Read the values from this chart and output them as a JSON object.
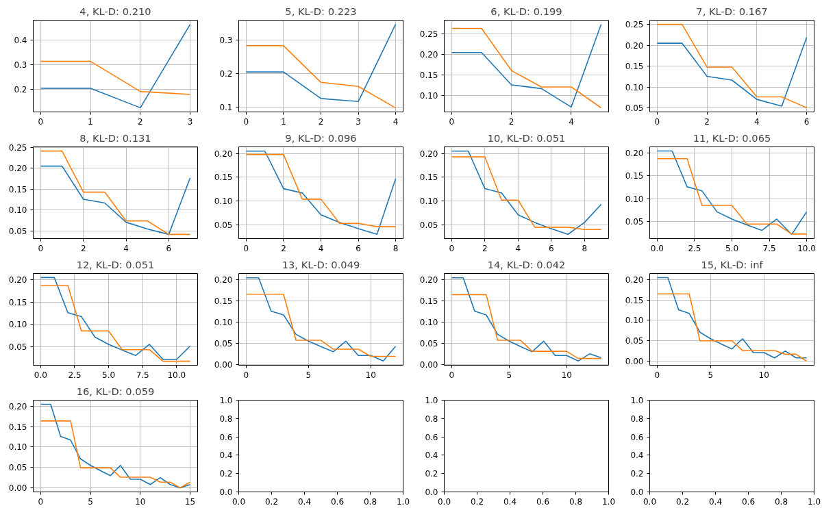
{
  "chart_data": [
    {
      "type": "line",
      "title": "4, KL-D: 0.210",
      "x": [
        0,
        1,
        2,
        3
      ],
      "series": [
        {
          "color": "#1f77b4",
          "values": [
            0.205,
            0.205,
            0.126,
            0.464
          ]
        },
        {
          "color": "#ff7f0e",
          "values": [
            0.314,
            0.314,
            0.192,
            0.18
          ]
        }
      ],
      "xlim": [
        -0.15,
        3.15
      ],
      "ylim": [
        0.109,
        0.481
      ],
      "xticks": [
        0,
        1,
        2,
        3
      ],
      "yticks": [
        0.2,
        0.3,
        0.4
      ],
      "grid": true
    },
    {
      "type": "line",
      "title": "5, KL-D: 0.223",
      "x": [
        0,
        1,
        2,
        3,
        4
      ],
      "series": [
        {
          "color": "#1f77b4",
          "values": [
            0.205,
            0.205,
            0.126,
            0.117,
            0.347
          ]
        },
        {
          "color": "#ff7f0e",
          "values": [
            0.283,
            0.283,
            0.174,
            0.162,
            0.098
          ]
        }
      ],
      "xlim": [
        -0.2,
        4.2
      ],
      "ylim": [
        0.086,
        0.359
      ],
      "xticks": [
        0,
        1,
        2,
        3,
        4
      ],
      "yticks": [
        0.1,
        0.2,
        0.3
      ],
      "grid": true
    },
    {
      "type": "line",
      "title": "6, KL-D: 0.199",
      "x": [
        0,
        1,
        2,
        3,
        4,
        5
      ],
      "series": [
        {
          "color": "#1f77b4",
          "values": [
            0.205,
            0.205,
            0.126,
            0.117,
            0.072,
            0.274
          ]
        },
        {
          "color": "#ff7f0e",
          "values": [
            0.264,
            0.264,
            0.161,
            0.121,
            0.121,
            0.07
          ]
        }
      ],
      "xlim": [
        -0.25,
        5.25
      ],
      "ylim": [
        0.06,
        0.284
      ],
      "xticks": [
        0,
        2,
        4
      ],
      "yticks": [
        {
          "value": 0.1,
          "label": "0.10"
        },
        0.15,
        {
          "value": 0.2,
          "label": "0.20"
        },
        0.25
      ],
      "grid": true
    },
    {
      "type": "line",
      "title": "7, KL-D: 0.167",
      "x": [
        0,
        1,
        2,
        3,
        4,
        5,
        6
      ],
      "series": [
        {
          "color": "#1f77b4",
          "values": [
            0.205,
            0.205,
            0.126,
            0.117,
            0.071,
            0.055,
            0.219
          ]
        },
        {
          "color": "#ff7f0e",
          "values": [
            0.25,
            0.25,
            0.148,
            0.148,
            0.077,
            0.077,
            0.051
          ]
        }
      ],
      "xlim": [
        -0.3,
        6.3
      ],
      "ylim": [
        0.041,
        0.26
      ],
      "xticks": [
        0,
        2,
        4,
        6
      ],
      "yticks": [
        0.05,
        {
          "value": 0.1,
          "label": "0.10"
        },
        0.15,
        {
          "value": 0.2,
          "label": "0.20"
        },
        0.25
      ],
      "grid": true
    },
    {
      "type": "line",
      "title": "8, KL-D: 0.131",
      "x": [
        0,
        1,
        2,
        3,
        4,
        5,
        6,
        7
      ],
      "series": [
        {
          "color": "#1f77b4",
          "values": [
            0.205,
            0.205,
            0.126,
            0.117,
            0.071,
            0.055,
            0.042,
            0.177
          ]
        },
        {
          "color": "#ff7f0e",
          "values": [
            0.241,
            0.241,
            0.143,
            0.143,
            0.074,
            0.074,
            0.042,
            0.042
          ]
        }
      ],
      "xlim": [
        -0.35,
        7.35
      ],
      "ylim": [
        0.032,
        0.251
      ],
      "xticks": [
        0,
        2,
        4,
        6
      ],
      "yticks": [
        0.05,
        {
          "value": 0.1,
          "label": "0.10"
        },
        0.15,
        {
          "value": 0.2,
          "label": "0.20"
        },
        0.25
      ],
      "grid": true
    },
    {
      "type": "line",
      "title": "9, KL-D: 0.096",
      "x": [
        0,
        1,
        2,
        3,
        4,
        5,
        6,
        7,
        8
      ],
      "series": [
        {
          "color": "#1f77b4",
          "values": [
            0.205,
            0.205,
            0.126,
            0.117,
            0.071,
            0.055,
            0.042,
            0.03,
            0.147
          ]
        },
        {
          "color": "#ff7f0e",
          "values": [
            0.198,
            0.198,
            0.198,
            0.104,
            0.104,
            0.053,
            0.053,
            0.046,
            0.046
          ]
        }
      ],
      "xlim": [
        -0.4,
        8.4
      ],
      "ylim": [
        0.021,
        0.214
      ],
      "xticks": [
        0,
        2,
        4,
        6,
        8
      ],
      "yticks": [
        0.05,
        {
          "value": 0.1,
          "label": "0.10"
        },
        0.15,
        {
          "value": 0.2,
          "label": "0.20"
        }
      ],
      "grid": true
    },
    {
      "type": "line",
      "title": "10, KL-D: 0.051",
      "x": [
        0,
        1,
        2,
        3,
        4,
        5,
        6,
        7,
        8,
        9
      ],
      "series": [
        {
          "color": "#1f77b4",
          "values": [
            0.205,
            0.205,
            0.126,
            0.117,
            0.071,
            0.055,
            0.042,
            0.03,
            0.055,
            0.093
          ]
        },
        {
          "color": "#ff7f0e",
          "values": [
            0.193,
            0.193,
            0.193,
            0.102,
            0.102,
            0.045,
            0.045,
            0.045,
            0.04,
            0.04
          ]
        }
      ],
      "xlim": [
        -0.45,
        9.45
      ],
      "ylim": [
        0.021,
        0.214
      ],
      "xticks": [
        0,
        2,
        4,
        6,
        8
      ],
      "yticks": [
        0.05,
        {
          "value": 0.1,
          "label": "0.10"
        },
        0.15,
        {
          "value": 0.2,
          "label": "0.20"
        }
      ],
      "grid": true
    },
    {
      "type": "line",
      "title": "11, KL-D: 0.065",
      "x": [
        0,
        1,
        2,
        3,
        4,
        5,
        6,
        7,
        8,
        9,
        10
      ],
      "series": [
        {
          "color": "#1f77b4",
          "values": [
            0.205,
            0.205,
            0.126,
            0.117,
            0.071,
            0.055,
            0.042,
            0.03,
            0.055,
            0.021,
            0.071
          ]
        },
        {
          "color": "#ff7f0e",
          "values": [
            0.188,
            0.188,
            0.188,
            0.085,
            0.085,
            0.085,
            0.044,
            0.044,
            0.044,
            0.022,
            0.022
          ]
        }
      ],
      "xlim": [
        -0.5,
        10.5
      ],
      "ylim": [
        0.012,
        0.214
      ],
      "xticks": [
        {
          "value": 0,
          "label": "0.0"
        },
        2.5,
        {
          "value": 5,
          "label": "5.0"
        },
        7.5,
        {
          "value": 10,
          "label": "10.0"
        }
      ],
      "yticks": [
        0.05,
        {
          "value": 0.1,
          "label": "0.10"
        },
        0.15,
        {
          "value": 0.2,
          "label": "0.20"
        }
      ],
      "grid": true
    },
    {
      "type": "line",
      "title": "12, KL-D: 0.051",
      "x": [
        0,
        1,
        2,
        3,
        4,
        5,
        6,
        7,
        8,
        9,
        10,
        11
      ],
      "series": [
        {
          "color": "#1f77b4",
          "values": [
            0.205,
            0.205,
            0.126,
            0.117,
            0.071,
            0.055,
            0.042,
            0.03,
            0.055,
            0.021,
            0.021,
            0.051
          ]
        },
        {
          "color": "#ff7f0e",
          "values": [
            0.187,
            0.187,
            0.187,
            0.085,
            0.085,
            0.085,
            0.043,
            0.043,
            0.043,
            0.017,
            0.017,
            0.017
          ]
        }
      ],
      "xlim": [
        -0.55,
        11.55
      ],
      "ylim": [
        0.008,
        0.214
      ],
      "xticks": [
        {
          "value": 0,
          "label": "0.0"
        },
        2.5,
        {
          "value": 5,
          "label": "5.0"
        },
        7.5,
        {
          "value": 10,
          "label": "10.0"
        }
      ],
      "yticks": [
        0.05,
        {
          "value": 0.1,
          "label": "0.10"
        },
        0.15,
        {
          "value": 0.2,
          "label": "0.20"
        }
      ],
      "grid": true
    },
    {
      "type": "line",
      "title": "13, KL-D: 0.049",
      "x": [
        0,
        1,
        2,
        3,
        4,
        5,
        6,
        7,
        8,
        9,
        10,
        11,
        12
      ],
      "series": [
        {
          "color": "#1f77b4",
          "values": [
            0.205,
            0.205,
            0.126,
            0.117,
            0.071,
            0.055,
            0.042,
            0.03,
            0.055,
            0.021,
            0.021,
            0.008,
            0.043
          ]
        },
        {
          "color": "#ff7f0e",
          "values": [
            0.166,
            0.166,
            0.166,
            0.166,
            0.057,
            0.057,
            0.057,
            0.036,
            0.036,
            0.036,
            0.019,
            0.019,
            0.019
          ]
        }
      ],
      "xlim": [
        -0.6,
        12.6
      ],
      "ylim": [
        -0.002,
        0.215
      ],
      "xticks": [
        0,
        5,
        10
      ],
      "yticks": [
        {
          "value": 0,
          "label": "0.00"
        },
        0.05,
        {
          "value": 0.1,
          "label": "0.10"
        },
        0.15,
        {
          "value": 0.2,
          "label": "0.20"
        }
      ],
      "grid": true
    },
    {
      "type": "line",
      "title": "14, KL-D: 0.042",
      "x": [
        0,
        1,
        2,
        3,
        4,
        5,
        6,
        7,
        8,
        9,
        10,
        11,
        12,
        13
      ],
      "series": [
        {
          "color": "#1f77b4",
          "values": [
            0.205,
            0.205,
            0.126,
            0.117,
            0.071,
            0.055,
            0.042,
            0.03,
            0.055,
            0.021,
            0.021,
            0.008,
            0.025,
            0.016
          ]
        },
        {
          "color": "#ff7f0e",
          "values": [
            0.165,
            0.165,
            0.165,
            0.165,
            0.057,
            0.057,
            0.057,
            0.031,
            0.031,
            0.031,
            0.031,
            0.014,
            0.014,
            0.014
          ]
        }
      ],
      "xlim": [
        -0.65,
        13.65
      ],
      "ylim": [
        -0.002,
        0.215
      ],
      "xticks": [
        0,
        5,
        10
      ],
      "yticks": [
        {
          "value": 0,
          "label": "0.00"
        },
        0.05,
        {
          "value": 0.1,
          "label": "0.10"
        },
        0.15,
        {
          "value": 0.2,
          "label": "0.20"
        }
      ],
      "grid": true
    },
    {
      "type": "line",
      "title": "15, KL-D: inf",
      "x": [
        0,
        1,
        2,
        3,
        4,
        5,
        6,
        7,
        8,
        9,
        10,
        11,
        12,
        13,
        14
      ],
      "series": [
        {
          "color": "#1f77b4",
          "values": [
            0.205,
            0.205,
            0.126,
            0.117,
            0.071,
            0.055,
            0.042,
            0.03,
            0.055,
            0.021,
            0.021,
            0.008,
            0.025,
            0.008,
            0.008
          ]
        },
        {
          "color": "#ff7f0e",
          "values": [
            0.165,
            0.165,
            0.165,
            0.165,
            0.05,
            0.05,
            0.05,
            0.05,
            0.026,
            0.026,
            0.026,
            0.026,
            0.017,
            0.017,
            0.0
          ]
        }
      ],
      "xlim": [
        -0.7,
        14.7
      ],
      "ylim": [
        -0.01,
        0.215
      ],
      "xticks": [
        0,
        5,
        10
      ],
      "yticks": [
        {
          "value": 0,
          "label": "0.00"
        },
        0.05,
        {
          "value": 0.1,
          "label": "0.10"
        },
        0.15,
        {
          "value": 0.2,
          "label": "0.20"
        }
      ],
      "grid": true
    },
    {
      "type": "line",
      "title": "16, KL-D: 0.059",
      "x": [
        0,
        1,
        2,
        3,
        4,
        5,
        6,
        7,
        8,
        9,
        10,
        11,
        12,
        13,
        14,
        15
      ],
      "series": [
        {
          "color": "#1f77b4",
          "values": [
            0.205,
            0.205,
            0.126,
            0.117,
            0.071,
            0.055,
            0.042,
            0.03,
            0.055,
            0.021,
            0.021,
            0.008,
            0.025,
            0.008,
            0.0,
            0.008
          ]
        },
        {
          "color": "#ff7f0e",
          "values": [
            0.164,
            0.164,
            0.164,
            0.164,
            0.049,
            0.049,
            0.049,
            0.049,
            0.026,
            0.026,
            0.026,
            0.026,
            0.014,
            0.014,
            0.0,
            0.014
          ]
        }
      ],
      "xlim": [
        -0.75,
        15.75
      ],
      "ylim": [
        -0.01,
        0.215
      ],
      "xticks": [
        0,
        5,
        10,
        15
      ],
      "yticks": [
        {
          "value": 0,
          "label": "0.00"
        },
        0.05,
        {
          "value": 0.1,
          "label": "0.10"
        },
        0.15,
        {
          "value": 0.2,
          "label": "0.20"
        }
      ],
      "grid": true
    },
    {
      "type": "line",
      "xlim": [
        0,
        1
      ],
      "ylim": [
        0,
        1
      ],
      "xticks": [
        {
          "value": 0,
          "label": "0.0"
        },
        0.2,
        0.4,
        0.6,
        0.8,
        {
          "value": 1,
          "label": "1.0"
        }
      ],
      "yticks": [
        {
          "value": 0,
          "label": "0.0"
        },
        0.2,
        0.4,
        0.6,
        0.8,
        {
          "value": 1,
          "label": "1.0"
        }
      ]
    },
    {
      "type": "line",
      "xlim": [
        0,
        1
      ],
      "ylim": [
        0,
        1
      ],
      "xticks": [
        {
          "value": 0,
          "label": "0.0"
        },
        0.2,
        0.4,
        0.6,
        0.8,
        {
          "value": 1,
          "label": "1.0"
        }
      ],
      "yticks": [
        {
          "value": 0,
          "label": "0.0"
        },
        0.2,
        0.4,
        0.6,
        0.8,
        {
          "value": 1,
          "label": "1.0"
        }
      ]
    },
    {
      "type": "line",
      "xlim": [
        0,
        1
      ],
      "ylim": [
        0,
        1
      ],
      "xticks": [
        {
          "value": 0,
          "label": "0.0"
        },
        0.2,
        0.4,
        0.6,
        0.8,
        {
          "value": 1,
          "label": "1.0"
        }
      ],
      "yticks": [
        {
          "value": 0,
          "label": "0.0"
        },
        0.2,
        0.4,
        0.6,
        0.8,
        {
          "value": 1,
          "label": "1.0"
        }
      ]
    }
  ]
}
